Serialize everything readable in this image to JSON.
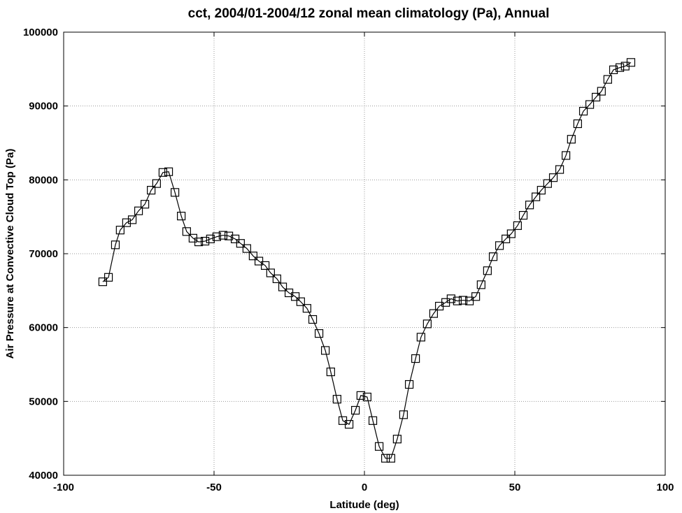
{
  "chart_data": {
    "type": "line",
    "title": "cct, 2004/01-2004/12 zonal mean climatology (Pa), Annual",
    "xlabel": "Latitude (deg)",
    "ylabel": "Air Pressure at Convective Cloud Top (Pa)",
    "x": [
      -87.0,
      -85.1,
      -82.8,
      -81.2,
      -79.1,
      -77.2,
      -75.1,
      -73.0,
      -70.9,
      -69.1,
      -67.0,
      -65.1,
      -63.0,
      -60.9,
      -59.1,
      -57.0,
      -55.1,
      -53.0,
      -51.2,
      -49.1,
      -47.0,
      -45.1,
      -43.0,
      -41.2,
      -39.1,
      -37.0,
      -35.1,
      -33.0,
      -31.2,
      -29.1,
      -27.2,
      -25.1,
      -23.0,
      -21.2,
      -19.1,
      -17.2,
      -15.1,
      -13.0,
      -11.2,
      -9.1,
      -7.2,
      -5.1,
      -3.0,
      -1.2,
      0.9,
      2.8,
      4.9,
      7.0,
      8.8,
      10.9,
      13.0,
      14.9,
      17.0,
      18.8,
      20.9,
      23.0,
      24.9,
      27.0,
      28.8,
      30.9,
      32.8,
      34.9,
      37.0,
      38.8,
      40.9,
      42.8,
      44.9,
      47.0,
      48.8,
      50.9,
      52.8,
      54.9,
      57.0,
      58.8,
      60.9,
      62.8,
      64.9,
      67.0,
      68.8,
      70.9,
      72.8,
      74.9,
      77.0,
      78.8,
      80.9,
      82.8,
      84.9,
      86.7,
      88.6
    ],
    "values": [
      66200,
      66800,
      71200,
      73200,
      74200,
      74600,
      75800,
      76700,
      78600,
      79500,
      81000,
      81100,
      78300,
      75100,
      73000,
      72100,
      71600,
      71700,
      72000,
      72300,
      72500,
      72400,
      72000,
      71400,
      70700,
      69700,
      69000,
      68400,
      67400,
      66600,
      65500,
      64700,
      64200,
      63500,
      62600,
      61100,
      59200,
      56900,
      54000,
      50300,
      47400,
      46900,
      48800,
      50800,
      50600,
      47400,
      43900,
      42300,
      42300,
      44900,
      48200,
      52300,
      55800,
      58700,
      60500,
      61900,
      62900,
      63400,
      63900,
      63600,
      63700,
      63600,
      64200,
      65800,
      67700,
      69600,
      71100,
      72000,
      72700,
      73800,
      75200,
      76600,
      77700,
      78600,
      79500,
      80300,
      81400,
      83300,
      85500,
      87600,
      89300,
      90200,
      91200,
      92000,
      93600,
      94900,
      95200,
      95400,
      95900
    ],
    "color": "#000000",
    "xlim": [
      -100,
      100
    ],
    "xticks": [
      -100,
      -50,
      0,
      50,
      100
    ],
    "ylim": [
      40000,
      100000
    ],
    "yticks": [
      40000,
      50000,
      60000,
      70000,
      80000,
      90000,
      100000
    ],
    "grid": true
  }
}
